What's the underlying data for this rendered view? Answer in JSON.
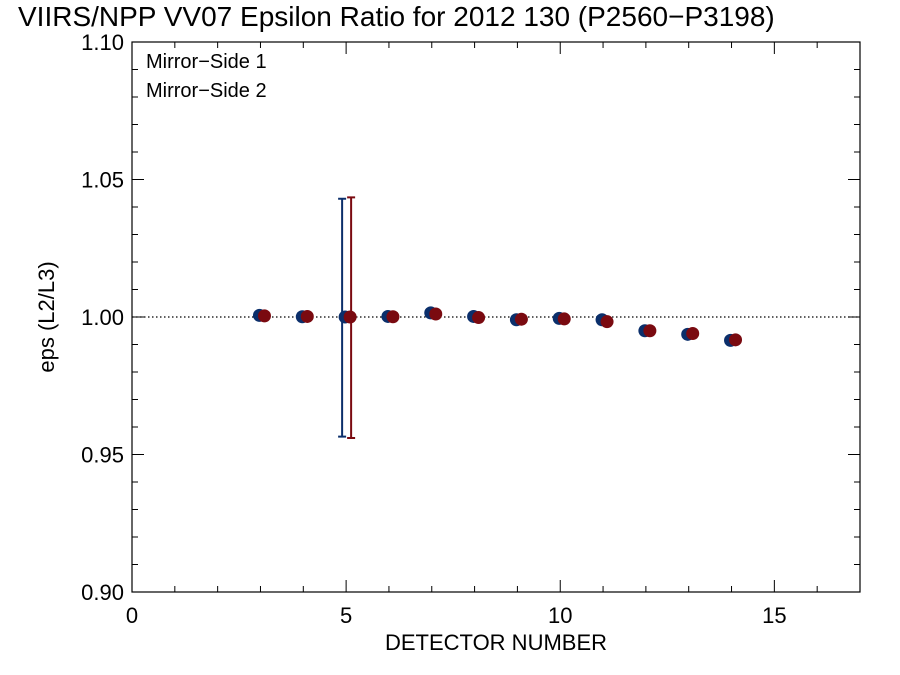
{
  "chart_data": {
    "type": "scatter",
    "title": "VIIRS/NPP VV07 Epsilon Ratio for 2012 130 (P2560−P3198)",
    "xlabel": "DETECTOR NUMBER",
    "ylabel": "eps (L2/L3)",
    "xlim": [
      0,
      17
    ],
    "ylim": [
      0.9,
      1.1
    ],
    "x_ticks": [
      0,
      5,
      10,
      15
    ],
    "x_tick_labels": [
      "0",
      "5",
      "10",
      "15"
    ],
    "y_ticks": [
      0.9,
      0.95,
      1.0,
      1.05,
      1.1
    ],
    "y_tick_labels": [
      "0.90",
      "0.95",
      "1.00",
      "1.05",
      "1.10"
    ],
    "reference_line": 1.0,
    "legend_position": "top-left",
    "series": [
      {
        "name": "Mirror−Side 1",
        "color": "#0b2f6b",
        "x": [
          3,
          4,
          5,
          6,
          7,
          8,
          9,
          10,
          11,
          12,
          13,
          14
        ],
        "y": [
          1.0006,
          1.0001,
          1.0,
          1.0002,
          1.0015,
          1.0002,
          0.999,
          0.9995,
          0.999,
          0.995,
          0.9937,
          0.9915
        ],
        "error_bars": [
          {
            "x": 5,
            "low": 0.9565,
            "high": 1.043
          }
        ]
      },
      {
        "name": "Mirror−Side 2",
        "color": "#7a0a10",
        "x": [
          3,
          4,
          5,
          6,
          7,
          8,
          9,
          10,
          11,
          12,
          13,
          14
        ],
        "y": [
          1.0004,
          1.0002,
          1.0,
          1.0001,
          1.0011,
          0.9998,
          0.9992,
          0.9993,
          0.9983,
          0.995,
          0.994,
          0.9917
        ],
        "error_bars": [
          {
            "x": 5,
            "low": 0.956,
            "high": 1.0435
          }
        ]
      }
    ]
  }
}
